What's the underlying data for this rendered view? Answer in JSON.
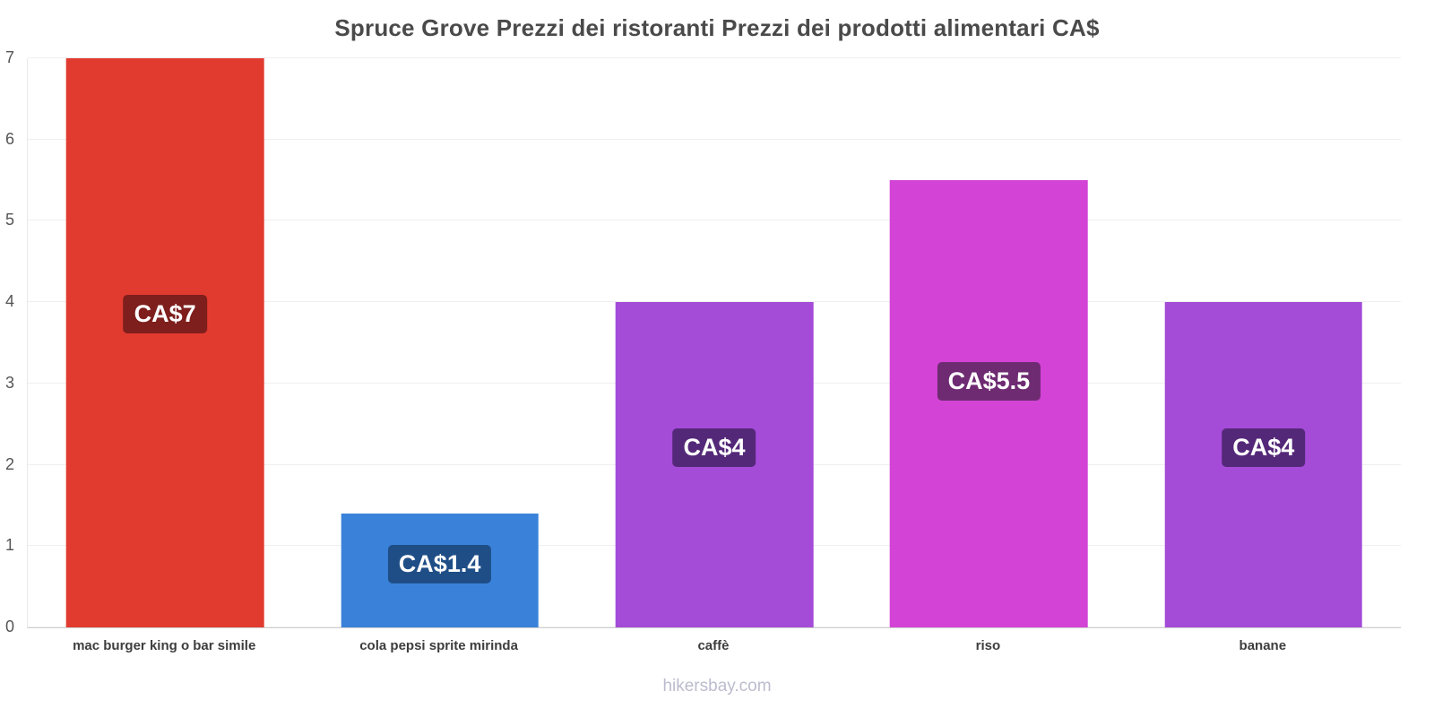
{
  "title": "Spruce Grove Prezzi dei ristoranti Prezzi dei prodotti alimentari CA$",
  "footer": "hikersbay.com",
  "chart_data": {
    "type": "bar",
    "title": "Spruce Grove Prezzi dei ristoranti Prezzi dei prodotti alimentari CA$",
    "currency": "CA$",
    "categories": [
      "mac burger king o bar simile",
      "cola pepsi sprite mirinda",
      "caffè",
      "riso",
      "banane"
    ],
    "values": [
      7,
      1.4,
      4,
      5.5,
      4
    ],
    "value_labels": [
      "CA$7",
      "CA$1.4",
      "CA$4",
      "CA$5.5",
      "CA$4"
    ],
    "bar_colors": [
      "#e13b30",
      "#3a82d9",
      "#a44bd8",
      "#d343d6",
      "#a44bd8"
    ],
    "label_bg_colors": [
      "#7e1f1d",
      "#1f4e87",
      "#542878",
      "#6e2b72",
      "#542878"
    ],
    "ylim": [
      0,
      7
    ],
    "yticks": [
      0,
      1,
      2,
      3,
      4,
      5,
      6,
      7
    ],
    "grid": true,
    "legend": "none",
    "xlabel": "",
    "ylabel": ""
  }
}
